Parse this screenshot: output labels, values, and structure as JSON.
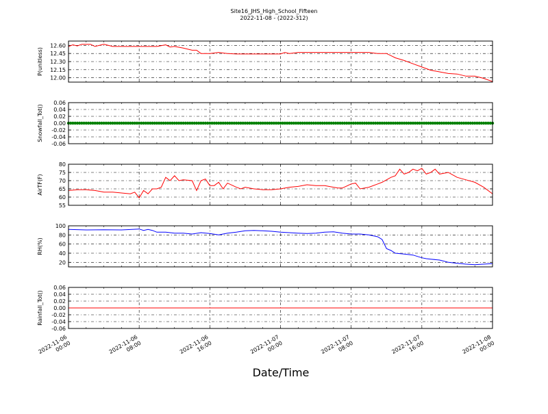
{
  "figure": {
    "title_line1": "Site16_JHS_High_School_Fifteen",
    "title_line2": "2022-11-08 - (2022-312)",
    "xlabel": "Date/Time"
  },
  "chart_data": {
    "type": "line",
    "grid": true,
    "x_ticks": [
      [
        "2022-11-06",
        "00:00"
      ],
      [
        "2022-11-06",
        "08:00"
      ],
      [
        "2022-11-06",
        "16:00"
      ],
      [
        "2022-11-07",
        "00:00"
      ],
      [
        "2022-11-07",
        "08:00"
      ],
      [
        "2022-11-07",
        "16:00"
      ],
      [
        "2022-11-08",
        "00:00"
      ]
    ],
    "x_range_hours": [
      0,
      48
    ],
    "panels": [
      {
        "ylabel": "P(unitless)",
        "ylim": [
          11.92,
          12.68
        ],
        "yticks": [
          12.6,
          12.45,
          12.3,
          12.15,
          12.0
        ],
        "ytick_labels": [
          "12.60",
          "12.45",
          "12.30",
          "12.15",
          "12.00"
        ],
        "color": "#ff0000",
        "marker": false,
        "x": [
          0,
          0.5,
          1,
          1.5,
          2.5,
          3,
          4,
          5,
          6,
          8,
          10,
          11,
          11.5,
          12,
          13,
          14,
          14.5,
          15,
          16,
          17,
          18,
          19,
          20,
          22,
          24,
          24.5,
          25,
          26,
          27,
          28,
          30,
          32,
          34,
          35,
          36,
          36.5,
          37,
          38,
          39,
          40,
          41,
          42,
          43,
          44,
          45,
          46,
          47,
          48
        ],
        "y": [
          12.58,
          12.61,
          12.59,
          12.62,
          12.62,
          12.58,
          12.62,
          12.58,
          12.58,
          12.58,
          12.58,
          12.61,
          12.57,
          12.58,
          12.55,
          12.51,
          12.51,
          12.45,
          12.45,
          12.47,
          12.45,
          12.44,
          12.44,
          12.44,
          12.44,
          12.47,
          12.45,
          12.47,
          12.47,
          12.47,
          12.47,
          12.47,
          12.47,
          12.45,
          12.45,
          12.41,
          12.37,
          12.32,
          12.26,
          12.2,
          12.14,
          12.11,
          12.08,
          12.07,
          12.03,
          12.03,
          11.99,
          11.93
        ]
      },
      {
        "ylabel": "Snowfall_Tot()",
        "ylim": [
          -0.06,
          0.06
        ],
        "yticks": [
          0.06,
          0.04,
          0.02,
          0.0,
          -0.02,
          -0.04,
          -0.06
        ],
        "ytick_labels": [
          "0.06",
          "0.04",
          "0.02",
          "0.00",
          "-0.02",
          "-0.04",
          "-0.06"
        ],
        "color": "#008000",
        "marker": true,
        "x": [
          0,
          48
        ],
        "y": [
          0,
          0
        ]
      },
      {
        "ylabel": "AirTF(F)",
        "ylim": [
          55,
          80
        ],
        "yticks": [
          80,
          75,
          70,
          65,
          60,
          55
        ],
        "ytick_labels": [
          "80",
          "75",
          "70",
          "65",
          "60",
          "55"
        ],
        "color": "#ff0000",
        "marker": false,
        "x": [
          0,
          1,
          2,
          3,
          4,
          5,
          6,
          7,
          7.5,
          8,
          8.5,
          9,
          9.5,
          10,
          10.5,
          11,
          11.5,
          12,
          12.5,
          13,
          14,
          14.5,
          15,
          15.5,
          16,
          16.5,
          17,
          17.5,
          18,
          19,
          19.5,
          20,
          21,
          22,
          23,
          24,
          25,
          26,
          27,
          28,
          29,
          30,
          30.5,
          31,
          32,
          32.5,
          33,
          34,
          35,
          35.5,
          36,
          36.5,
          37,
          37.5,
          38,
          38.5,
          39,
          39.5,
          40,
          40.5,
          41,
          41.5,
          42,
          43,
          44,
          45,
          46,
          47,
          48
        ],
        "y": [
          64,
          64.5,
          64.5,
          64,
          63,
          63,
          62.5,
          62,
          63,
          59.5,
          64,
          62,
          65,
          65,
          66,
          72,
          70,
          73,
          70,
          70.5,
          70,
          64,
          70,
          71,
          67,
          67,
          69,
          65,
          68.5,
          66,
          65,
          66,
          65,
          64.5,
          64.5,
          65,
          66,
          66.5,
          67.5,
          67,
          67,
          66,
          65.5,
          65.5,
          68,
          68.5,
          65,
          66,
          68,
          69,
          70.5,
          72,
          73,
          77,
          74,
          75,
          77,
          76,
          77.5,
          74,
          75,
          77,
          74,
          75,
          72,
          70.5,
          69,
          66,
          62
        ]
      },
      {
        "ylabel": "RH(%)",
        "ylim": [
          10,
          100
        ],
        "yticks": [
          100,
          80,
          60,
          40,
          20
        ],
        "ytick_labels": [
          "100",
          "80",
          "60",
          "40",
          "20"
        ],
        "color": "#0000ff",
        "marker": false,
        "x": [
          0,
          2,
          4,
          6,
          8,
          8.5,
          9,
          9.5,
          10,
          11,
          12,
          13,
          14,
          15,
          16,
          17,
          18,
          19,
          20,
          21,
          22,
          23,
          24,
          25,
          26,
          27,
          28,
          29,
          30,
          31,
          32,
          33,
          34,
          35,
          35.5,
          36,
          36.5,
          37,
          38,
          39,
          40,
          40.5,
          41,
          42,
          43,
          44,
          45,
          46,
          47,
          48
        ],
        "y": [
          92,
          91,
          91.5,
          91,
          93,
          90,
          92,
          90,
          86,
          86,
          84,
          84,
          82,
          85,
          83,
          80,
          84,
          86,
          89,
          90,
          89,
          88,
          86,
          85,
          84,
          83,
          84,
          86,
          87,
          84,
          82,
          82,
          80,
          76,
          70,
          50,
          46,
          40,
          38,
          36,
          30,
          28,
          27,
          25,
          20,
          18,
          16,
          15,
          16,
          17
        ]
      },
      {
        "ylabel": "Rainfall_Tot()",
        "ylim": [
          -0.06,
          0.06
        ],
        "yticks": [
          0.06,
          0.04,
          0.02,
          0.0,
          -0.02,
          -0.04,
          -0.06
        ],
        "ytick_labels": [
          "0.06",
          "0.04",
          "0.02",
          "0.00",
          "-0.02",
          "-0.04",
          "-0.06"
        ],
        "color": "#ff0000",
        "marker": false,
        "x": [
          0,
          48
        ],
        "y": [
          0,
          0
        ]
      }
    ]
  }
}
